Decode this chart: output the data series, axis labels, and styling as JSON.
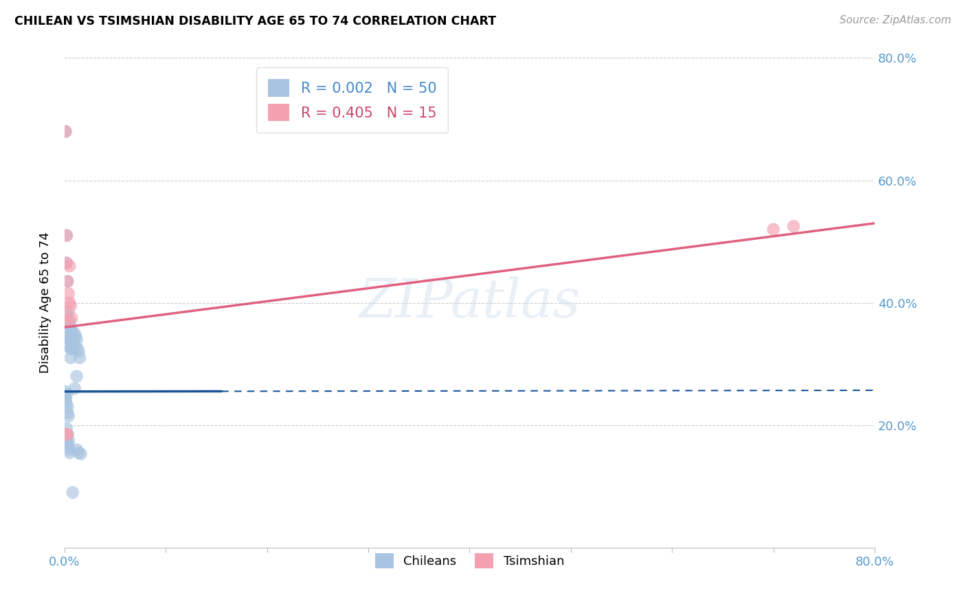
{
  "title": "CHILEAN VS TSIMSHIAN DISABILITY AGE 65 TO 74 CORRELATION CHART",
  "source": "Source: ZipAtlas.com",
  "ylabel": "Disability Age 65 to 74",
  "xlim": [
    0.0,
    0.8
  ],
  "ylim": [
    0.0,
    0.8
  ],
  "chilean_color": "#a8c4e0",
  "tsimshian_color": "#f4a0b0",
  "chilean_line_color": "#1a5496",
  "tsimshian_line_color": "#e06080",
  "watermark": "ZIPatlas",
  "chilean_points": [
    [
      0.001,
      0.68
    ],
    [
      0.002,
      0.51
    ],
    [
      0.002,
      0.465
    ],
    [
      0.003,
      0.435
    ],
    [
      0.004,
      0.385
    ],
    [
      0.004,
      0.345
    ],
    [
      0.004,
      0.33
    ],
    [
      0.005,
      0.37
    ],
    [
      0.005,
      0.355
    ],
    [
      0.005,
      0.34
    ],
    [
      0.006,
      0.36
    ],
    [
      0.006,
      0.34
    ],
    [
      0.006,
      0.325
    ],
    [
      0.006,
      0.31
    ],
    [
      0.007,
      0.355
    ],
    [
      0.007,
      0.34
    ],
    [
      0.007,
      0.325
    ],
    [
      0.008,
      0.345
    ],
    [
      0.008,
      0.33
    ],
    [
      0.009,
      0.335
    ],
    [
      0.01,
      0.35
    ],
    [
      0.01,
      0.33
    ],
    [
      0.01,
      0.26
    ],
    [
      0.011,
      0.345
    ],
    [
      0.012,
      0.34
    ],
    [
      0.012,
      0.28
    ],
    [
      0.013,
      0.325
    ],
    [
      0.014,
      0.32
    ],
    [
      0.015,
      0.31
    ],
    [
      0.001,
      0.255
    ],
    [
      0.001,
      0.245
    ],
    [
      0.001,
      0.24
    ],
    [
      0.002,
      0.25
    ],
    [
      0.002,
      0.235
    ],
    [
      0.003,
      0.23
    ],
    [
      0.003,
      0.22
    ],
    [
      0.004,
      0.215
    ],
    [
      0.002,
      0.195
    ],
    [
      0.002,
      0.18
    ],
    [
      0.003,
      0.185
    ],
    [
      0.003,
      0.17
    ],
    [
      0.004,
      0.175
    ],
    [
      0.004,
      0.165
    ],
    [
      0.004,
      0.16
    ],
    [
      0.005,
      0.155
    ],
    [
      0.012,
      0.16
    ],
    [
      0.014,
      0.155
    ],
    [
      0.016,
      0.153
    ],
    [
      0.008,
      0.09
    ]
  ],
  "tsimshian_points": [
    [
      0.001,
      0.68
    ],
    [
      0.002,
      0.51
    ],
    [
      0.002,
      0.465
    ],
    [
      0.003,
      0.435
    ],
    [
      0.004,
      0.415
    ],
    [
      0.005,
      0.4
    ],
    [
      0.006,
      0.395
    ],
    [
      0.007,
      0.375
    ],
    [
      0.002,
      0.185
    ],
    [
      0.003,
      0.185
    ],
    [
      0.7,
      0.52
    ],
    [
      0.72,
      0.525
    ],
    [
      0.001,
      0.38
    ],
    [
      0.004,
      0.37
    ],
    [
      0.005,
      0.46
    ]
  ],
  "chilean_line_y0": 0.255,
  "chilean_line_y1": 0.257,
  "chilean_line_x_solid_end": 0.155,
  "tsimshian_line_y0": 0.36,
  "tsimshian_line_y1": 0.53,
  "background_color": "#ffffff",
  "grid_color": "#cccccc"
}
